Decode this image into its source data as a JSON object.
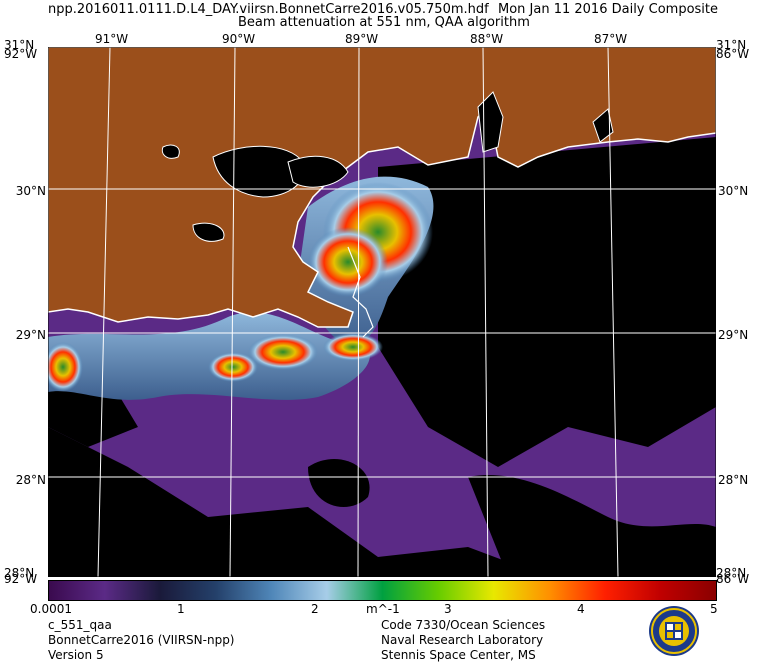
{
  "header": {
    "filename": "npp.2016011.0111.D.L4_DAY.viirsn.BonnetCarre2016.v05.750m.hdf",
    "date_label": "Mon Jan 11 2016 Daily Composite",
    "product_title": "Beam attenuation at 551 nm, QAA algorithm"
  },
  "map": {
    "lon_labels": [
      "91°W",
      "90°W",
      "89°W",
      "88°W",
      "87°W"
    ],
    "lat_labels": [
      "30°N",
      "29°N",
      "28°N"
    ],
    "corner_labels": {
      "top_left": "31°N",
      "top_left_lon": "92°W",
      "top_right": "31°N",
      "top_right_lon": "86°W",
      "bottom_left": "28°N",
      "bottom_left_lon": "92°W",
      "bottom_right": "28°N",
      "bottom_right_lon": "86°W"
    },
    "colors": {
      "land": "#9b4f1b",
      "ocean_low": "#5b2a86",
      "nodata": "#000000",
      "coast": "#ffffff",
      "grid": "#ffffff"
    }
  },
  "colorbar": {
    "tick_labels": [
      "0.0001",
      "1",
      "2",
      "3",
      "4",
      "5"
    ],
    "unit": "m^-1",
    "gradient": [
      "#3a0a4e",
      "#5b2a86",
      "#1a1a3a",
      "#24406a",
      "#4f86b8",
      "#a7cde8",
      "#00a040",
      "#66cc00",
      "#e8e800",
      "#ff9000",
      "#ff2000",
      "#c00000",
      "#8a0000"
    ]
  },
  "footer": {
    "left": [
      "c_551_qaa",
      "BonnetCarre2016 (VIIRSN-npp)",
      "Version 5"
    ],
    "right": [
      "Code 7330/Ocean Sciences",
      "Naval Research Laboratory",
      "Stennis Space Center, MS"
    ]
  }
}
